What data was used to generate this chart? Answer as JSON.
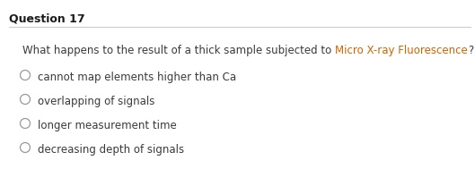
{
  "title": "Question 17",
  "question_plain": "What happens to the result of a thick sample subjected to ",
  "question_highlight": "Micro X-ray Fluorescence",
  "question_end": "?",
  "options": [
    "cannot map elements higher than Ca",
    "overlapping of signals",
    "longer measurement time",
    "decreasing depth of signals"
  ],
  "background_color": "#ffffff",
  "title_color": "#1a1a1a",
  "question_color": "#3a3a3a",
  "highlight_color": "#cc6600",
  "option_color": "#3a3a3a",
  "title_fontsize": 9.0,
  "question_fontsize": 8.5,
  "option_fontsize": 8.5,
  "circle_color": "#999999",
  "line_color": "#cccccc",
  "fig_width": 5.29,
  "fig_height": 1.89,
  "dpi": 100
}
